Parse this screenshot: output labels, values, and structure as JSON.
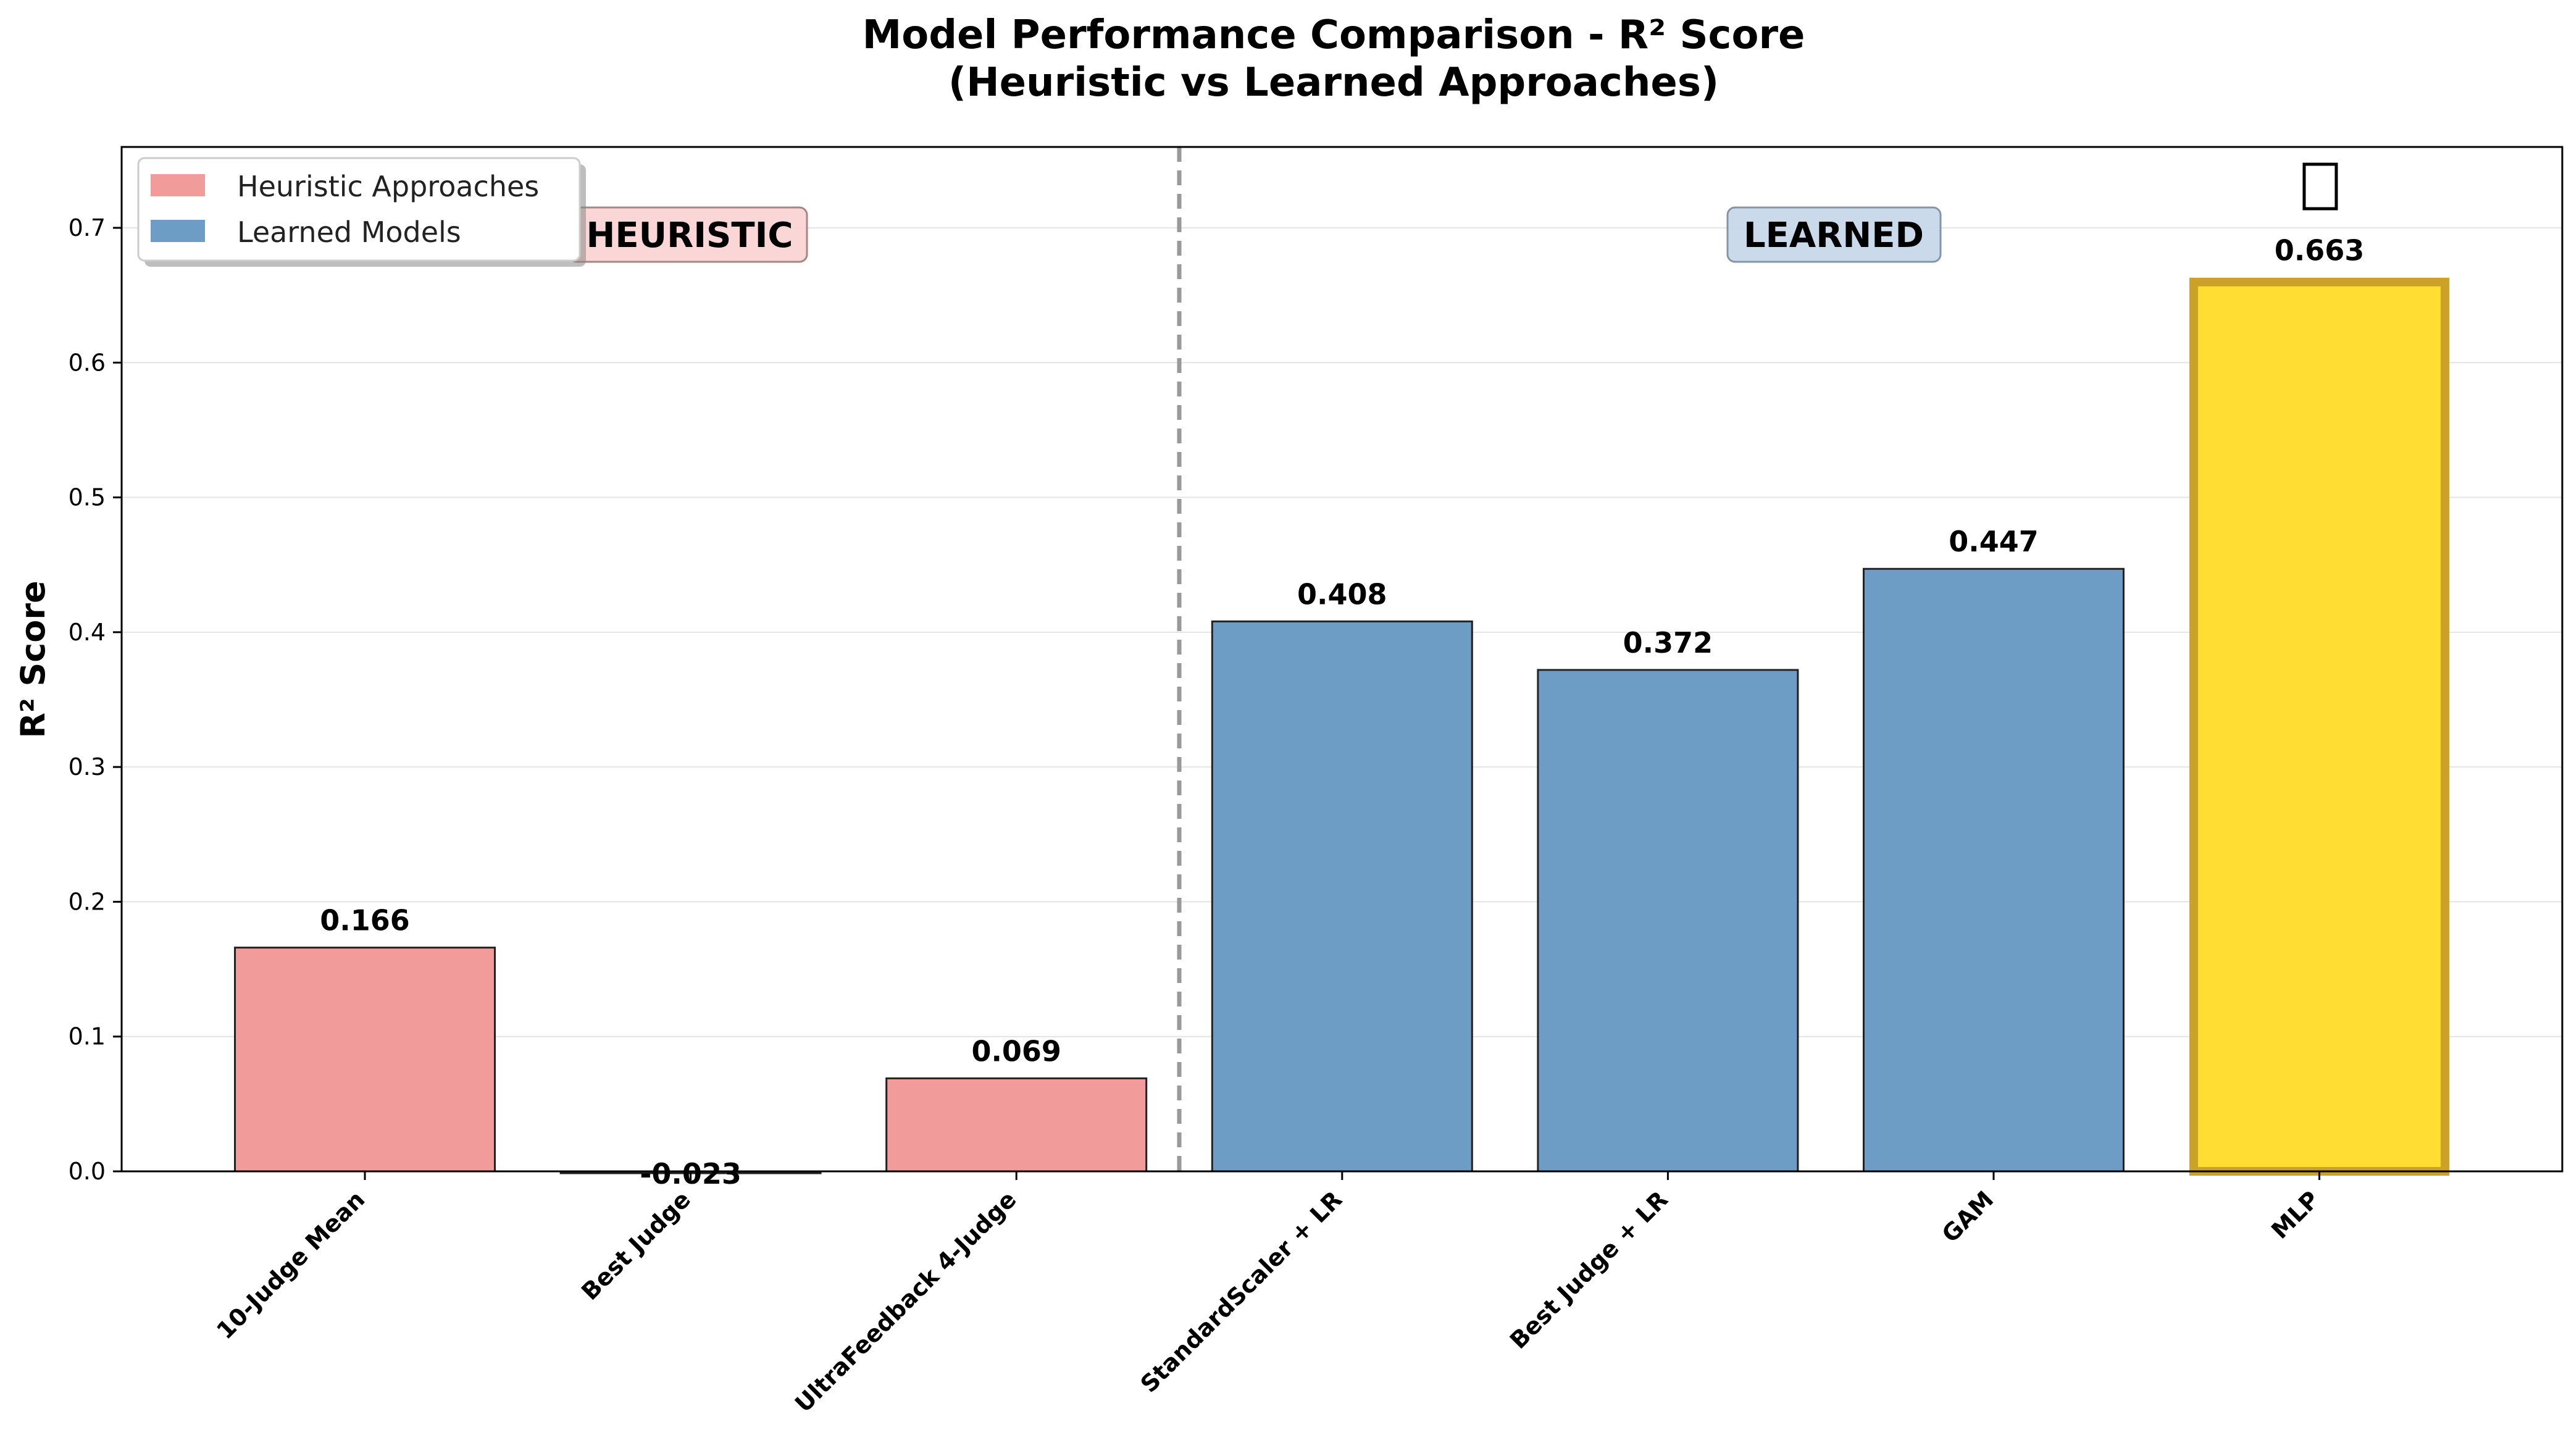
{
  "chart_data": {
    "type": "bar",
    "title": "Model Performance Comparison - R² Score",
    "subtitle": "(Heuristic vs Learned Approaches)",
    "ylabel": "R² Score",
    "xlabel": "",
    "ylim": [
      0,
      0.76
    ],
    "yticks": [
      0.0,
      0.1,
      0.2,
      0.3,
      0.4,
      0.5,
      0.6,
      0.7
    ],
    "ytick_labels": [
      "0.0",
      "0.1",
      "0.2",
      "0.3",
      "0.4",
      "0.5",
      "0.6",
      "0.7"
    ],
    "grid": "horizontal",
    "categories": [
      "10-Judge Mean",
      "Best Judge",
      "UltraFeedback 4-Judge",
      "StandardScaler + LR",
      "Best Judge + LR",
      "GAM",
      "MLP"
    ],
    "values": [
      0.166,
      -0.023,
      0.069,
      0.408,
      0.372,
      0.447,
      0.663
    ],
    "value_labels": [
      "0.166",
      "-0.023",
      "0.069",
      "0.408",
      "0.372",
      "0.447",
      "0.663"
    ],
    "groups": [
      "heuristic",
      "heuristic",
      "heuristic",
      "learned",
      "learned",
      "learned",
      "best"
    ],
    "legend": {
      "placement": "top-left",
      "entries": [
        {
          "label": "Heuristic Approaches",
          "color": "#f29b9b"
        },
        {
          "label": "Learned Models",
          "color": "#6d9cc5"
        }
      ]
    },
    "annotations": {
      "heuristic_label": "HEURISTIC",
      "learned_label": "LEARNED",
      "best_marker_icon": "trophy-icon",
      "separator": "dashed vertical line between heuristic and learned groups"
    },
    "colors": {
      "heuristic": "#f29b9b",
      "learned": "#6d9cc5",
      "best_fill": "#ffdd33",
      "best_edge": "#c9a227",
      "heuristic_badge": "#fad4d4",
      "learned_badge": "#c8d9ea",
      "separator": "#999999"
    }
  }
}
